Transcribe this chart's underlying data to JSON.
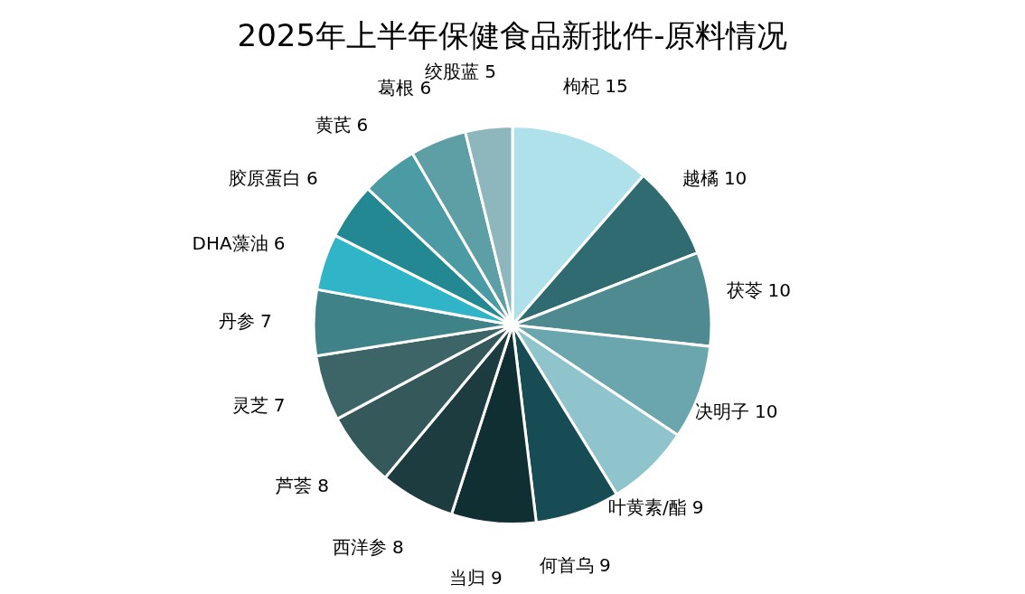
{
  "chart_data": {
    "type": "pie",
    "title": "2025年上半年保健食品新批件-原料情况",
    "categories": [
      "枸杞",
      "越橘",
      "茯苓",
      "决明子",
      "叶黄素/酯",
      "何首乌",
      "当归",
      "西洋参",
      "芦荟",
      "灵芝",
      "丹参",
      "DHA藻油",
      "胶原蛋白",
      "黄芪",
      "葛根",
      "绞股蓝"
    ],
    "values": [
      15,
      10,
      10,
      10,
      9,
      9,
      9,
      8,
      8,
      7,
      7,
      6,
      6,
      6,
      6,
      5
    ],
    "colors": [
      "#aee1ea",
      "#2f6b70",
      "#4f8a91",
      "#6ba5ad",
      "#8fc4cc",
      "#184c55",
      "#0f2f33",
      "#1c3c40",
      "#35585a",
      "#3d6466",
      "#3f8388",
      "#30b4c8",
      "#238892",
      "#4a9ba3",
      "#5e9fa6",
      "#8db7bc"
    ],
    "data_labels": true,
    "legend": false
  }
}
